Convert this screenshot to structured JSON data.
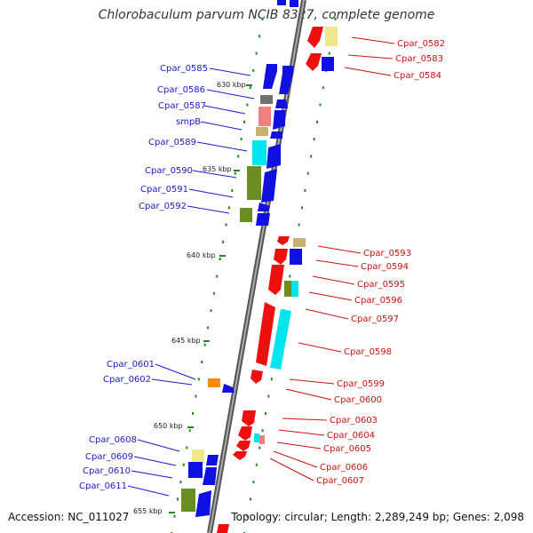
{
  "title": "Chlorobaculum parvum NCIB 8327, complete genome",
  "footer": {
    "accession": "Accession: NC_011027",
    "summary": "Topology: circular; Length: 2,289,249 bp; Genes: 2,098"
  },
  "colors": {
    "backbone": "#888888",
    "plus_label": "#1a1acc",
    "minus_label": "#cc1111",
    "tick": "#228822",
    "blue": "#1010e0",
    "red": "#ee1010",
    "olive": "#6b8e23",
    "tan": "#c8b070",
    "cyan": "#00e5ee",
    "pink": "#f08080",
    "grey": "#707070",
    "orange": "#ff8c00",
    "beige": "#f0e68c"
  },
  "kbp_labels": [
    "630 kbp",
    "635 kbp",
    "640 kbp",
    "645 kbp",
    "650 kbp",
    "655 kbp"
  ],
  "plus_genes": [
    "Cpar_0585",
    "Cpar_0586",
    "Cpar_0587",
    "smpB",
    "Cpar_0589",
    "Cpar_0590",
    "Cpar_0591",
    "Cpar_0592",
    "Cpar_0601",
    "Cpar_0602",
    "Cpar_0608",
    "Cpar_0609",
    "Cpar_0610",
    "Cpar_0611"
  ],
  "minus_genes": [
    "Cpar_0582",
    "Cpar_0583",
    "Cpar_0584",
    "Cpar_0593",
    "Cpar_0594",
    "Cpar_0595",
    "Cpar_0596",
    "Cpar_0597",
    "Cpar_0598",
    "Cpar_0599",
    "Cpar_0600",
    "Cpar_0603",
    "Cpar_0604",
    "Cpar_0605",
    "Cpar_0606",
    "Cpar_0607"
  ]
}
